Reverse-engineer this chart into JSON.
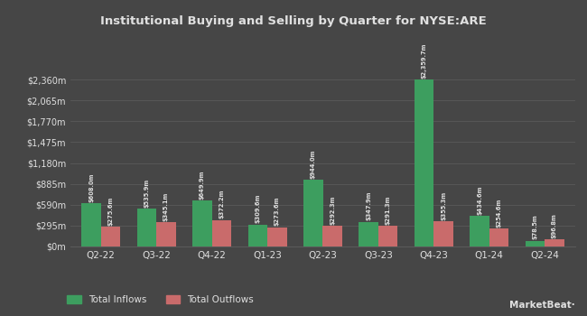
{
  "title": "Institutional Buying and Selling by Quarter for NYSE:ARE",
  "quarters": [
    "Q2-22",
    "Q3-22",
    "Q4-22",
    "Q1-23",
    "Q2-23",
    "Q3-23",
    "Q4-23",
    "Q1-24",
    "Q2-24"
  ],
  "inflows": [
    608.0,
    535.9,
    649.9,
    309.6,
    944.0,
    347.9,
    2359.7,
    434.6,
    78.5
  ],
  "outflows": [
    275.6,
    345.1,
    372.2,
    273.6,
    292.3,
    291.3,
    355.3,
    254.6,
    96.8
  ],
  "inflow_labels": [
    "$608.0m",
    "$535.9m",
    "$649.9m",
    "$309.6m",
    "$944.0m",
    "$347.9m",
    "$2,359.7m",
    "$434.6m",
    "$78.5m"
  ],
  "outflow_labels": [
    "$275.6m",
    "$345.1m",
    "$372.2m",
    "$273.6m",
    "$292.3m",
    "$291.3m",
    "$355.3m",
    "$254.6m",
    "$96.8m"
  ],
  "inflow_color": "#3d9e5f",
  "outflow_color": "#c96b6b",
  "bg_color": "#464646",
  "grid_color": "#5a5a5a",
  "text_color": "#e0e0e0",
  "ytick_labels": [
    "$0m",
    "$295m",
    "$590m",
    "$885m",
    "$1,180m",
    "$1,475m",
    "$1,770m",
    "$2,065m",
    "$2,360m"
  ],
  "ytick_values": [
    0,
    295,
    590,
    885,
    1180,
    1475,
    1770,
    2065,
    2360
  ],
  "ylim": [
    0,
    2680
  ],
  "bar_width": 0.35,
  "legend_inflow": "Total Inflows",
  "legend_outflow": "Total Outflows"
}
